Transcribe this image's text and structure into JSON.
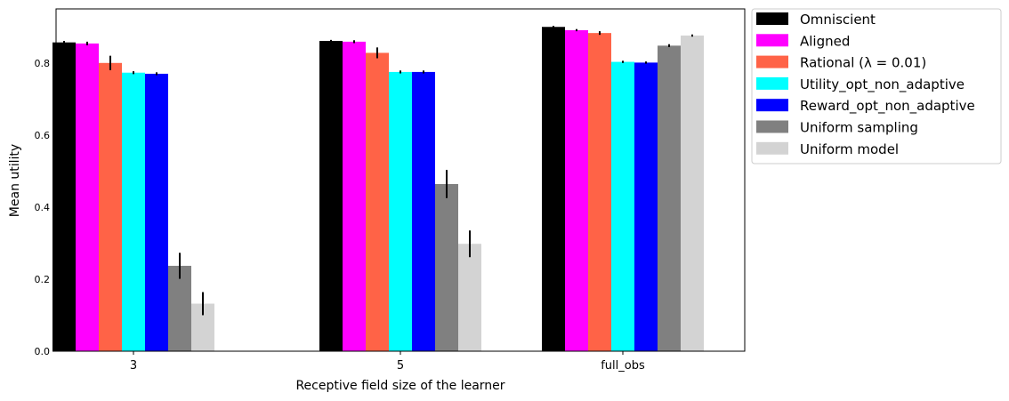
{
  "chart_data": {
    "type": "bar",
    "xlabel": "Receptive field size of the learner",
    "ylabel": "Mean utility",
    "categories": [
      "3",
      "5",
      "full_obs"
    ],
    "ylim": [
      0,
      0.95
    ],
    "yticks": [
      0.0,
      0.2,
      0.4,
      0.6,
      0.8
    ],
    "ytick_labels": [
      "0.0",
      "0.2",
      "0.4",
      "0.6",
      "0.8"
    ],
    "grid": false,
    "legend_position": "outside-right-top",
    "series": [
      {
        "name": "Omniscient",
        "color": "#000000",
        "values": [
          0.857,
          0.861,
          0.9
        ],
        "errors": [
          0.004,
          0.003,
          0.003
        ]
      },
      {
        "name": "Aligned",
        "color": "#ff00ff",
        "values": [
          0.854,
          0.859,
          0.891
        ],
        "errors": [
          0.005,
          0.004,
          0.003
        ]
      },
      {
        "name": "Rational (λ = 0.01)",
        "color": "#ff6347",
        "values": [
          0.8,
          0.828,
          0.883
        ],
        "errors": [
          0.02,
          0.015,
          0.005
        ]
      },
      {
        "name": "Utility_opt_non_adaptive",
        "color": "#00ffff",
        "values": [
          0.773,
          0.775,
          0.803
        ],
        "errors": [
          0.004,
          0.004,
          0.003
        ]
      },
      {
        "name": "Reward_opt_non_adaptive",
        "color": "#0000ff",
        "values": [
          0.77,
          0.775,
          0.801
        ],
        "errors": [
          0.004,
          0.004,
          0.003
        ]
      },
      {
        "name": "Uniform sampling",
        "color": "#808080",
        "values": [
          0.237,
          0.464,
          0.848
        ],
        "errors": [
          0.036,
          0.039,
          0.004
        ]
      },
      {
        "name": "Uniform model",
        "color": "#d3d3d3",
        "values": [
          0.132,
          0.298,
          0.876
        ],
        "errors": [
          0.032,
          0.037,
          0.003
        ]
      }
    ]
  }
}
